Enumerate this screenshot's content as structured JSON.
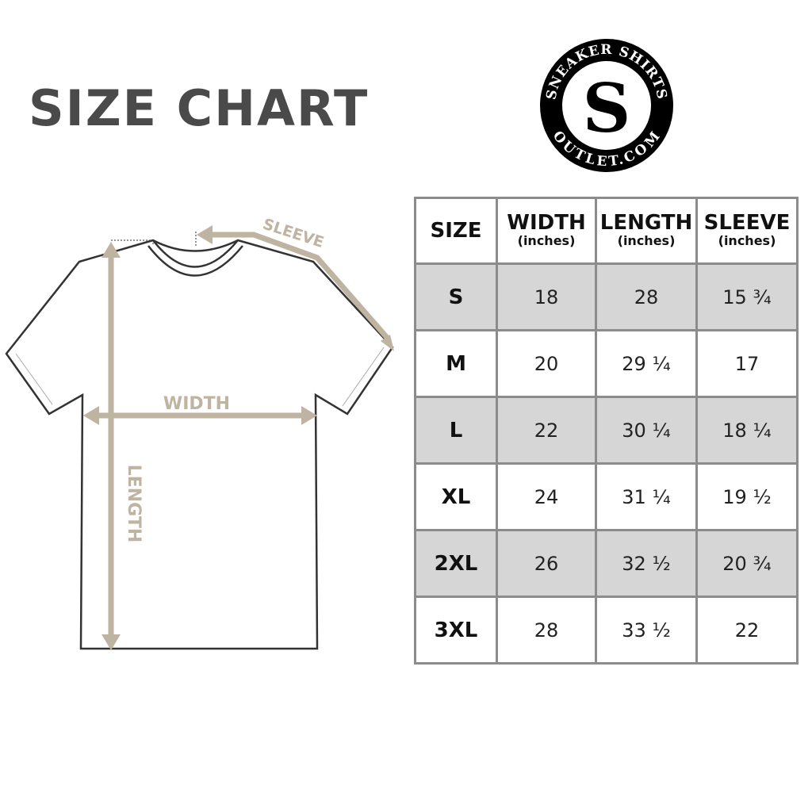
{
  "title": "SIZE CHART",
  "logo": {
    "top_text": "SNEAKER SHIRTS",
    "bottom_text": "OUTLET.COM"
  },
  "diagram": {
    "sleeve_label": "SLEEVE",
    "width_label": "WIDTH",
    "length_label": "LENGTH",
    "arrow_color": "#bfb3a1"
  },
  "table": {
    "headers": [
      {
        "label": "SIZE",
        "unit": ""
      },
      {
        "label": "WIDTH",
        "unit": "(inches)"
      },
      {
        "label": "LENGTH",
        "unit": "(inches)"
      },
      {
        "label": "SLEEVE",
        "unit": "(inches)"
      }
    ],
    "rows": [
      [
        "S",
        "18",
        "28",
        "15 ¾"
      ],
      [
        "M",
        "20",
        "29 ¼",
        "17"
      ],
      [
        "L",
        "22",
        "30 ¼",
        "18 ¼"
      ],
      [
        "XL",
        "24",
        "31 ¼",
        "19 ½"
      ],
      [
        "2XL",
        "26",
        "32 ½",
        "20 ¾"
      ],
      [
        "3XL",
        "28",
        "33 ½",
        "22"
      ]
    ]
  }
}
